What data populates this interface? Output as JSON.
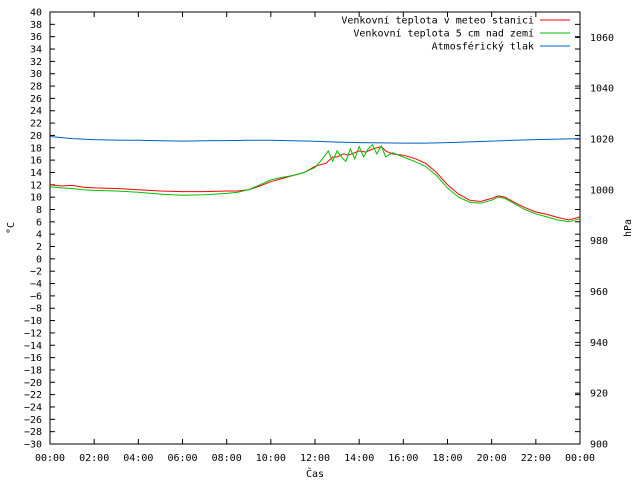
{
  "chart_data": {
    "type": "line",
    "xlabel": "Čas",
    "ylabel_left": "°C",
    "ylabel_right": "hPa",
    "x_ticks": [
      "00:00",
      "02:00",
      "04:00",
      "06:00",
      "08:00",
      "10:00",
      "12:00",
      "14:00",
      "16:00",
      "18:00",
      "20:00",
      "22:00",
      "00:00"
    ],
    "x_range_hours": [
      0,
      24
    ],
    "ylim_left": [
      -30,
      40
    ],
    "y_ticks_left": [
      40,
      38,
      36,
      34,
      32,
      30,
      28,
      26,
      24,
      22,
      20,
      18,
      16,
      14,
      12,
      10,
      8,
      6,
      4,
      2,
      0,
      -2,
      -4,
      -6,
      -8,
      -10,
      -12,
      -14,
      -16,
      -18,
      -20,
      -22,
      -24,
      -26,
      -28,
      -30
    ],
    "ylim_right": [
      900,
      1070
    ],
    "y_ticks_right": [
      1060,
      1040,
      1020,
      1000,
      980,
      960,
      940,
      920,
      900
    ],
    "grid": false,
    "legend_position": "top-right",
    "series": [
      {
        "name": "Venkovní teplota v meteo stanici",
        "color": "#ff0000",
        "axis": "left",
        "x": [
          0,
          0.5,
          1,
          1.5,
          2,
          3,
          4,
          5,
          6,
          7,
          8,
          8.5,
          9,
          9.5,
          10,
          10.5,
          11,
          11.5,
          12,
          12.5,
          12.8,
          13,
          13.3,
          13.5,
          13.8,
          14,
          14.3,
          14.6,
          14.8,
          15,
          15.2,
          15.5,
          16,
          16.5,
          17,
          17.5,
          18,
          18.5,
          19,
          19.5,
          20,
          20.3,
          20.6,
          21,
          21.5,
          22,
          22.5,
          23,
          23.5,
          24
        ],
        "y": [
          12,
          11.8,
          11.9,
          11.6,
          11.5,
          11.4,
          11.2,
          11,
          10.9,
          10.9,
          11,
          11,
          11.2,
          11.8,
          12.5,
          13,
          13.5,
          14,
          15,
          15.5,
          16.5,
          16.5,
          17,
          16.8,
          17.2,
          17.5,
          17.3,
          17.8,
          18,
          18.2,
          17.5,
          17,
          16.8,
          16.3,
          15.5,
          14,
          12,
          10.5,
          9.5,
          9.3,
          9.8,
          10.2,
          10,
          9.2,
          8.3,
          7.6,
          7.2,
          6.7,
          6.3,
          6.8
        ]
      },
      {
        "name": "Venkovní teplota 5 cm nad zemí",
        "color": "#00c000",
        "axis": "left",
        "x": [
          0,
          0.5,
          1,
          1.5,
          2,
          3,
          4,
          5,
          6,
          7,
          8,
          8.5,
          9,
          9.5,
          10,
          10.5,
          11,
          11.5,
          12,
          12.3,
          12.6,
          12.8,
          13,
          13.2,
          13.4,
          13.6,
          13.8,
          14,
          14.2,
          14.4,
          14.6,
          14.8,
          15,
          15.2,
          15.5,
          16,
          16.5,
          17,
          17.5,
          18,
          18.5,
          19,
          19.5,
          20,
          20.3,
          20.6,
          21,
          21.5,
          22,
          22.5,
          23,
          23.5,
          24
        ],
        "y": [
          11.7,
          11.5,
          11.4,
          11.2,
          11.1,
          11,
          10.8,
          10.5,
          10.3,
          10.4,
          10.6,
          10.8,
          11.2,
          12,
          12.8,
          13.2,
          13.5,
          14,
          14.8,
          16,
          17.5,
          15.8,
          17.5,
          16.5,
          15.8,
          17.8,
          16.2,
          18.2,
          16.5,
          17.8,
          18.5,
          17,
          18.3,
          16.5,
          17.2,
          16.5,
          15.8,
          15,
          13.5,
          11.5,
          10,
          9.2,
          9,
          9.5,
          10,
          9.8,
          9,
          8,
          7.3,
          6.8,
          6.3,
          6,
          6.5
        ]
      },
      {
        "name": "Atmosférický tlak",
        "color": "#0060c0",
        "axis": "right",
        "x": [
          0,
          1,
          2,
          3,
          4,
          5,
          6,
          7,
          8,
          9,
          10,
          11,
          12,
          13,
          14,
          15,
          16,
          17,
          18,
          19,
          20,
          21,
          22,
          23,
          24
        ],
        "y": [
          1021,
          1020.2,
          1019.8,
          1019.6,
          1019.5,
          1019.3,
          1019.2,
          1019.3,
          1019.4,
          1019.5,
          1019.5,
          1019.3,
          1019.1,
          1018.8,
          1018.6,
          1018.5,
          1018.4,
          1018.4,
          1018.6,
          1018.9,
          1019.2,
          1019.5,
          1019.8,
          1020,
          1020.2
        ]
      }
    ]
  }
}
